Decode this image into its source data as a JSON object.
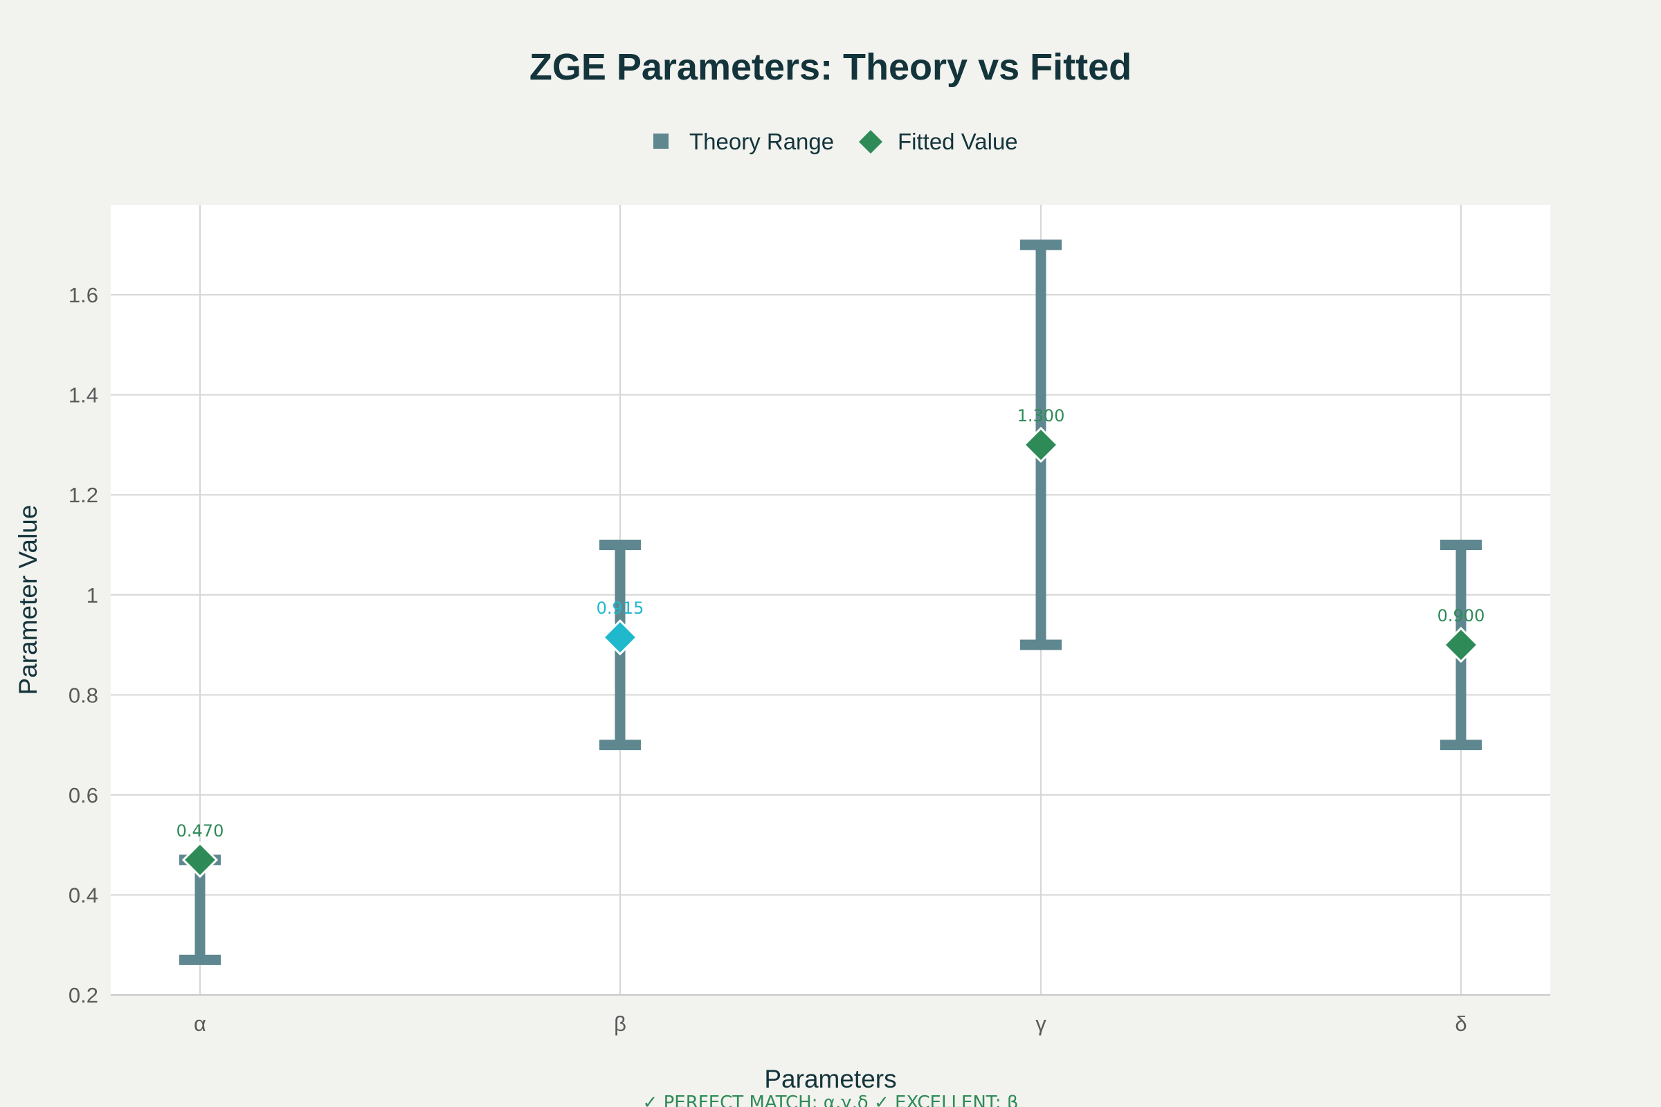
{
  "chart_data": {
    "type": "scatter",
    "title": "ZGE Parameters: Theory vs Fitted",
    "xlabel": "Parameters",
    "ylabel": "Parameter Value",
    "categories": [
      "α",
      "β",
      "γ",
      "δ"
    ],
    "ylim": [
      0.2,
      1.78
    ],
    "yticks": [
      0.2,
      0.4,
      0.6,
      0.8,
      1,
      1.2,
      1.4,
      1.6
    ],
    "ytick_labels": [
      "0.2",
      "0.4",
      "0.6",
      "0.8",
      "1",
      "1.2",
      "1.4",
      "1.6"
    ],
    "grid": true,
    "legend_position": "top-center",
    "series": [
      {
        "name": "Theory Range",
        "marker": "error-bar",
        "color": "#5f8790",
        "ranges": [
          {
            "category": "α",
            "low": 0.27,
            "high": 0.47
          },
          {
            "category": "β",
            "low": 0.7,
            "high": 1.1
          },
          {
            "category": "γ",
            "low": 0.9,
            "high": 1.7
          },
          {
            "category": "δ",
            "low": 0.7,
            "high": 1.1
          }
        ]
      },
      {
        "name": "Fitted Value",
        "marker": "diamond",
        "color": "#2e8b57",
        "values": [
          0.47,
          0.915,
          1.3,
          0.9
        ],
        "labels": [
          "0.470",
          "0.915",
          "1.300",
          "0.900"
        ],
        "point_colors": [
          "#2e8b57",
          "#1fb8cd",
          "#2e8b57",
          "#2e8b57"
        ]
      }
    ],
    "annotation": "✓ PERFECT MATCH: α,γ,δ  ✓ EXCELLENT: β"
  }
}
